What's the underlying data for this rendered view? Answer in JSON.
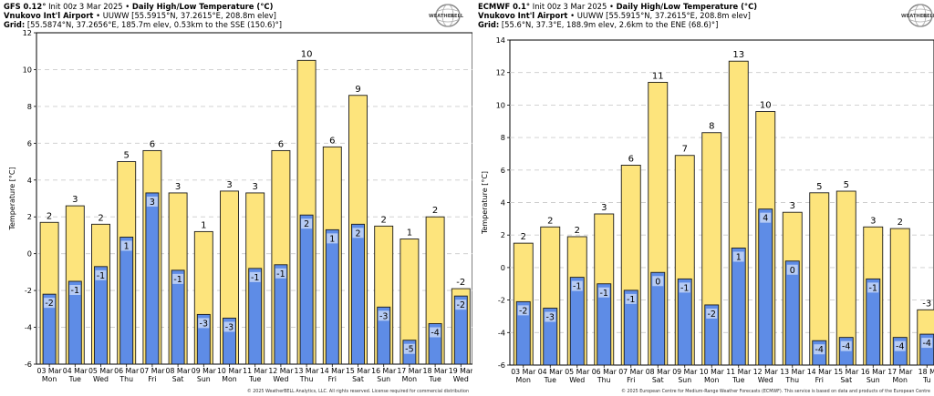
{
  "chart_data": [
    {
      "type": "bar",
      "title_parts": [
        "GFS 0.12°",
        "Init 00z 3 Mar 2025",
        "Daily High/Low Temperature (°C)"
      ],
      "station": "Vnukovo Int'l Airport",
      "station_detail": "UUWW [55.5915°N, 37.2615°E, 208.8m elev]",
      "grid_label": "Grid:",
      "grid_detail": "[55.5874°N, 37.2656°E, 185.7m elev, 0.53km to the SSE (150.6)°]",
      "ylabel": "Temperature [°C]",
      "ylim": [
        -6,
        12
      ],
      "yticks": [
        -6,
        -4,
        -2,
        0,
        2,
        4,
        6,
        8,
        10,
        12
      ],
      "categories": [
        "03 Mar",
        "04 Mar",
        "05 Mar",
        "06 Mar",
        "07 Mar",
        "08 Mar",
        "09 Mar",
        "10 Mar",
        "11 Mar",
        "12 Mar",
        "13 Mar",
        "14 Mar",
        "15 Mar",
        "16 Mar",
        "17 Mar",
        "18 Mar",
        "19 Mar"
      ],
      "weekdays": [
        "Mon",
        "Tue",
        "Wed",
        "Thu",
        "Fri",
        "Sat",
        "Sun",
        "Mon",
        "Tue",
        "Wed",
        "Thu",
        "Fri",
        "Sat",
        "Sun",
        "Mon",
        "Tue",
        "Wed"
      ],
      "series": [
        {
          "role": "high",
          "values": [
            1.7,
            2.6,
            1.6,
            5.0,
            5.6,
            3.3,
            1.2,
            3.4,
            3.3,
            5.6,
            10.5,
            5.8,
            8.6,
            1.5,
            0.8,
            2.0,
            -1.9
          ],
          "labels": [
            "2",
            "3",
            "2",
            "5",
            "6",
            "3",
            "1",
            "3",
            "3",
            "6",
            "10",
            "6",
            "9",
            "2",
            "1",
            "2",
            "-2"
          ]
        },
        {
          "role": "low",
          "values": [
            -2.2,
            -1.5,
            -0.7,
            0.9,
            3.3,
            -0.9,
            -3.3,
            -3.5,
            -0.8,
            -0.6,
            2.1,
            1.3,
            1.6,
            -2.9,
            -4.7,
            -3.8,
            -2.3
          ],
          "labels": [
            "-2",
            "-1",
            "-1",
            "1",
            "3",
            "-1",
            "-3",
            "-3",
            "-1",
            "-1",
            "2",
            "1",
            "2",
            "-3",
            "-5",
            "-4",
            "-2"
          ]
        }
      ],
      "copyright": "© 2025 WeatherBELL Analytics, LLC. All rights reserved. License required for commercial distribution"
    },
    {
      "type": "bar",
      "title_parts": [
        "ECMWF 0.1°",
        "Init 00z 3 Mar 2025",
        "Daily High/Low Temperature (°C)"
      ],
      "station": "Vnukovo Int'l Airport",
      "station_detail": "UUWW [55.5915°N, 37.2615°E, 208.8m elev]",
      "grid_label": "Grid:",
      "grid_detail": "[55.6°N, 37.3°E, 188.9m elev, 2.6km to the ENE (68.6)°]",
      "ylabel": "Temperature [°C]",
      "ylim": [
        -6,
        14
      ],
      "yticks": [
        -6,
        -4,
        -2,
        0,
        2,
        4,
        6,
        8,
        10,
        12,
        14
      ],
      "categories": [
        "03 Mar",
        "04 Mar",
        "05 Mar",
        "06 Mar",
        "07 Mar",
        "08 Mar",
        "09 Mar",
        "10 Mar",
        "11 Mar",
        "12 Mar",
        "13 Mar",
        "14 Mar",
        "15 Mar",
        "16 Mar",
        "17 Mar",
        "18 M"
      ],
      "weekdays": [
        "Mon",
        "Tue",
        "Wed",
        "Thu",
        "Fri",
        "Sat",
        "Sun",
        "Mon",
        "Tue",
        "Wed",
        "Thu",
        "Fri",
        "Sat",
        "Sun",
        "Mon",
        "Tu"
      ],
      "series": [
        {
          "role": "high",
          "values": [
            1.5,
            2.5,
            1.9,
            3.3,
            6.3,
            11.4,
            6.9,
            8.3,
            12.7,
            9.6,
            3.4,
            4.6,
            4.7,
            2.5,
            2.4,
            -2.6
          ],
          "labels": [
            "2",
            "2",
            "2",
            "3",
            "6",
            "11",
            "7",
            "8",
            "13",
            "10",
            "3",
            "5",
            "5",
            "3",
            "2",
            "-3"
          ]
        },
        {
          "role": "low",
          "values": [
            -2.1,
            -2.5,
            -0.6,
            -1.0,
            -1.4,
            -0.3,
            -0.7,
            -2.3,
            1.2,
            3.6,
            0.4,
            -4.5,
            -4.3,
            -0.7,
            -4.3,
            -4.1
          ],
          "labels": [
            "-2",
            "-3",
            "-1",
            "-1",
            "-1",
            "0",
            "-1",
            "-2",
            "1",
            "4",
            "0",
            "-4",
            "-4",
            "-1",
            "-4",
            "-4"
          ]
        }
      ],
      "copyright": "© 2025 European Centre for Medium-Range Weather Forecasts (ECMWF). This service is based on data and products of the European Centre"
    }
  ],
  "logo_text": [
    "WEATHER",
    "BELL"
  ],
  "colors": {
    "high_fill": "#fde47c",
    "low_fill": "#5e8ce6",
    "bar_edge": "#1a1a1a",
    "grid": "#cccccc"
  },
  "icons": {
    "logo": "weatherbell-globe-icon"
  }
}
